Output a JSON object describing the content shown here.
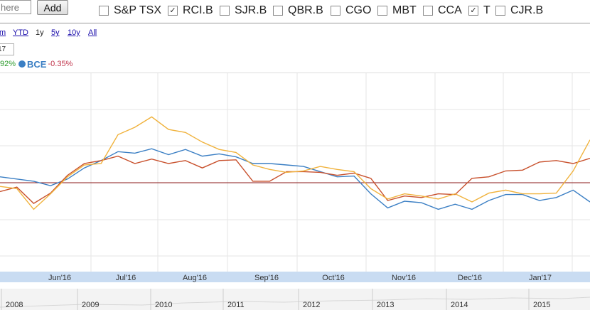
{
  "search": {
    "placeholder": "here"
  },
  "add_button": {
    "label": "Add"
  },
  "tickers": [
    {
      "label": "S&P TSX",
      "checked": false
    },
    {
      "label": "RCI.B",
      "checked": true
    },
    {
      "label": "SJR.B",
      "checked": false
    },
    {
      "label": "QBR.B",
      "checked": false
    },
    {
      "label": "CGO",
      "checked": false
    },
    {
      "label": "MBT",
      "checked": false
    },
    {
      "label": "CCA",
      "checked": false
    },
    {
      "label": "T",
      "checked": true
    },
    {
      "label": "CJR.B",
      "checked": false
    }
  ],
  "ranges": {
    "m": "m",
    "ytd": "YTD",
    "y1": "1y",
    "y5": "5y",
    "y10": "10y",
    "all": "All"
  },
  "date_box": "17",
  "legend": {
    "first_change": "92%",
    "bce_name": "BCE",
    "bce_change": "-0.35%"
  },
  "colors": {
    "bce": "#3b7fc4",
    "series_red": "#c8502c",
    "series_orange": "#f0b23c",
    "link": "#1a0dab",
    "positive": "#2a9a2a",
    "negative": "#c0334a",
    "baseline": "#8b1a1a",
    "axis_band": "#c9dcf2"
  },
  "chart_data": {
    "type": "line",
    "x_month_labels": [
      "Jun'16",
      "Jul'16",
      "Aug'16",
      "Sep'16",
      "Oct'16",
      "Nov'16",
      "Dec'16",
      "Jan'17"
    ],
    "navigator_years": [
      "2008",
      "2009",
      "2010",
      "2011",
      "2012",
      "2013",
      "2014",
      "2015"
    ],
    "series": [
      {
        "name": "BCE",
        "color": "#3b7fc4",
        "values": [
          0.8,
          0.5,
          0.2,
          -0.4,
          0.5,
          2.0,
          3.0,
          4.2,
          4.0,
          4.6,
          3.8,
          4.5,
          3.6,
          3.9,
          3.5,
          2.6,
          2.6,
          2.4,
          2.2,
          1.5,
          0.8,
          0.9,
          -1.5,
          -3.4,
          -2.5,
          -2.7,
          -3.6,
          -2.9,
          -3.6,
          -2.4,
          -1.6,
          -1.6,
          -2.4,
          -2.0,
          -1.0,
          -2.6
        ]
      },
      {
        "name": "",
        "color": "#c8502c",
        "values": [
          -1.2,
          -0.6,
          -2.8,
          -1.4,
          1.0,
          2.6,
          3.0,
          3.6,
          2.6,
          3.2,
          2.6,
          3.0,
          2.0,
          3.0,
          3.1,
          0.2,
          0.2,
          1.5,
          1.5,
          1.4,
          1.0,
          1.3,
          0.6,
          -2.4,
          -1.8,
          -2.0,
          -1.5,
          -1.6,
          0.6,
          0.8,
          1.6,
          1.7,
          2.8,
          3.0,
          2.6,
          3.3
        ]
      },
      {
        "name": "",
        "color": "#f0b23c",
        "values": [
          -0.5,
          -0.8,
          -3.6,
          -1.5,
          0.8,
          2.4,
          2.6,
          6.5,
          7.5,
          8.9,
          7.2,
          6.8,
          5.5,
          4.5,
          4.1,
          2.4,
          1.8,
          1.4,
          1.6,
          2.2,
          1.8,
          1.5,
          -0.8,
          -2.2,
          -1.5,
          -1.8,
          -2.2,
          -1.5,
          -2.6,
          -1.4,
          -1.0,
          -1.5,
          -1.5,
          -1.4,
          1.6,
          5.8
        ]
      }
    ]
  }
}
